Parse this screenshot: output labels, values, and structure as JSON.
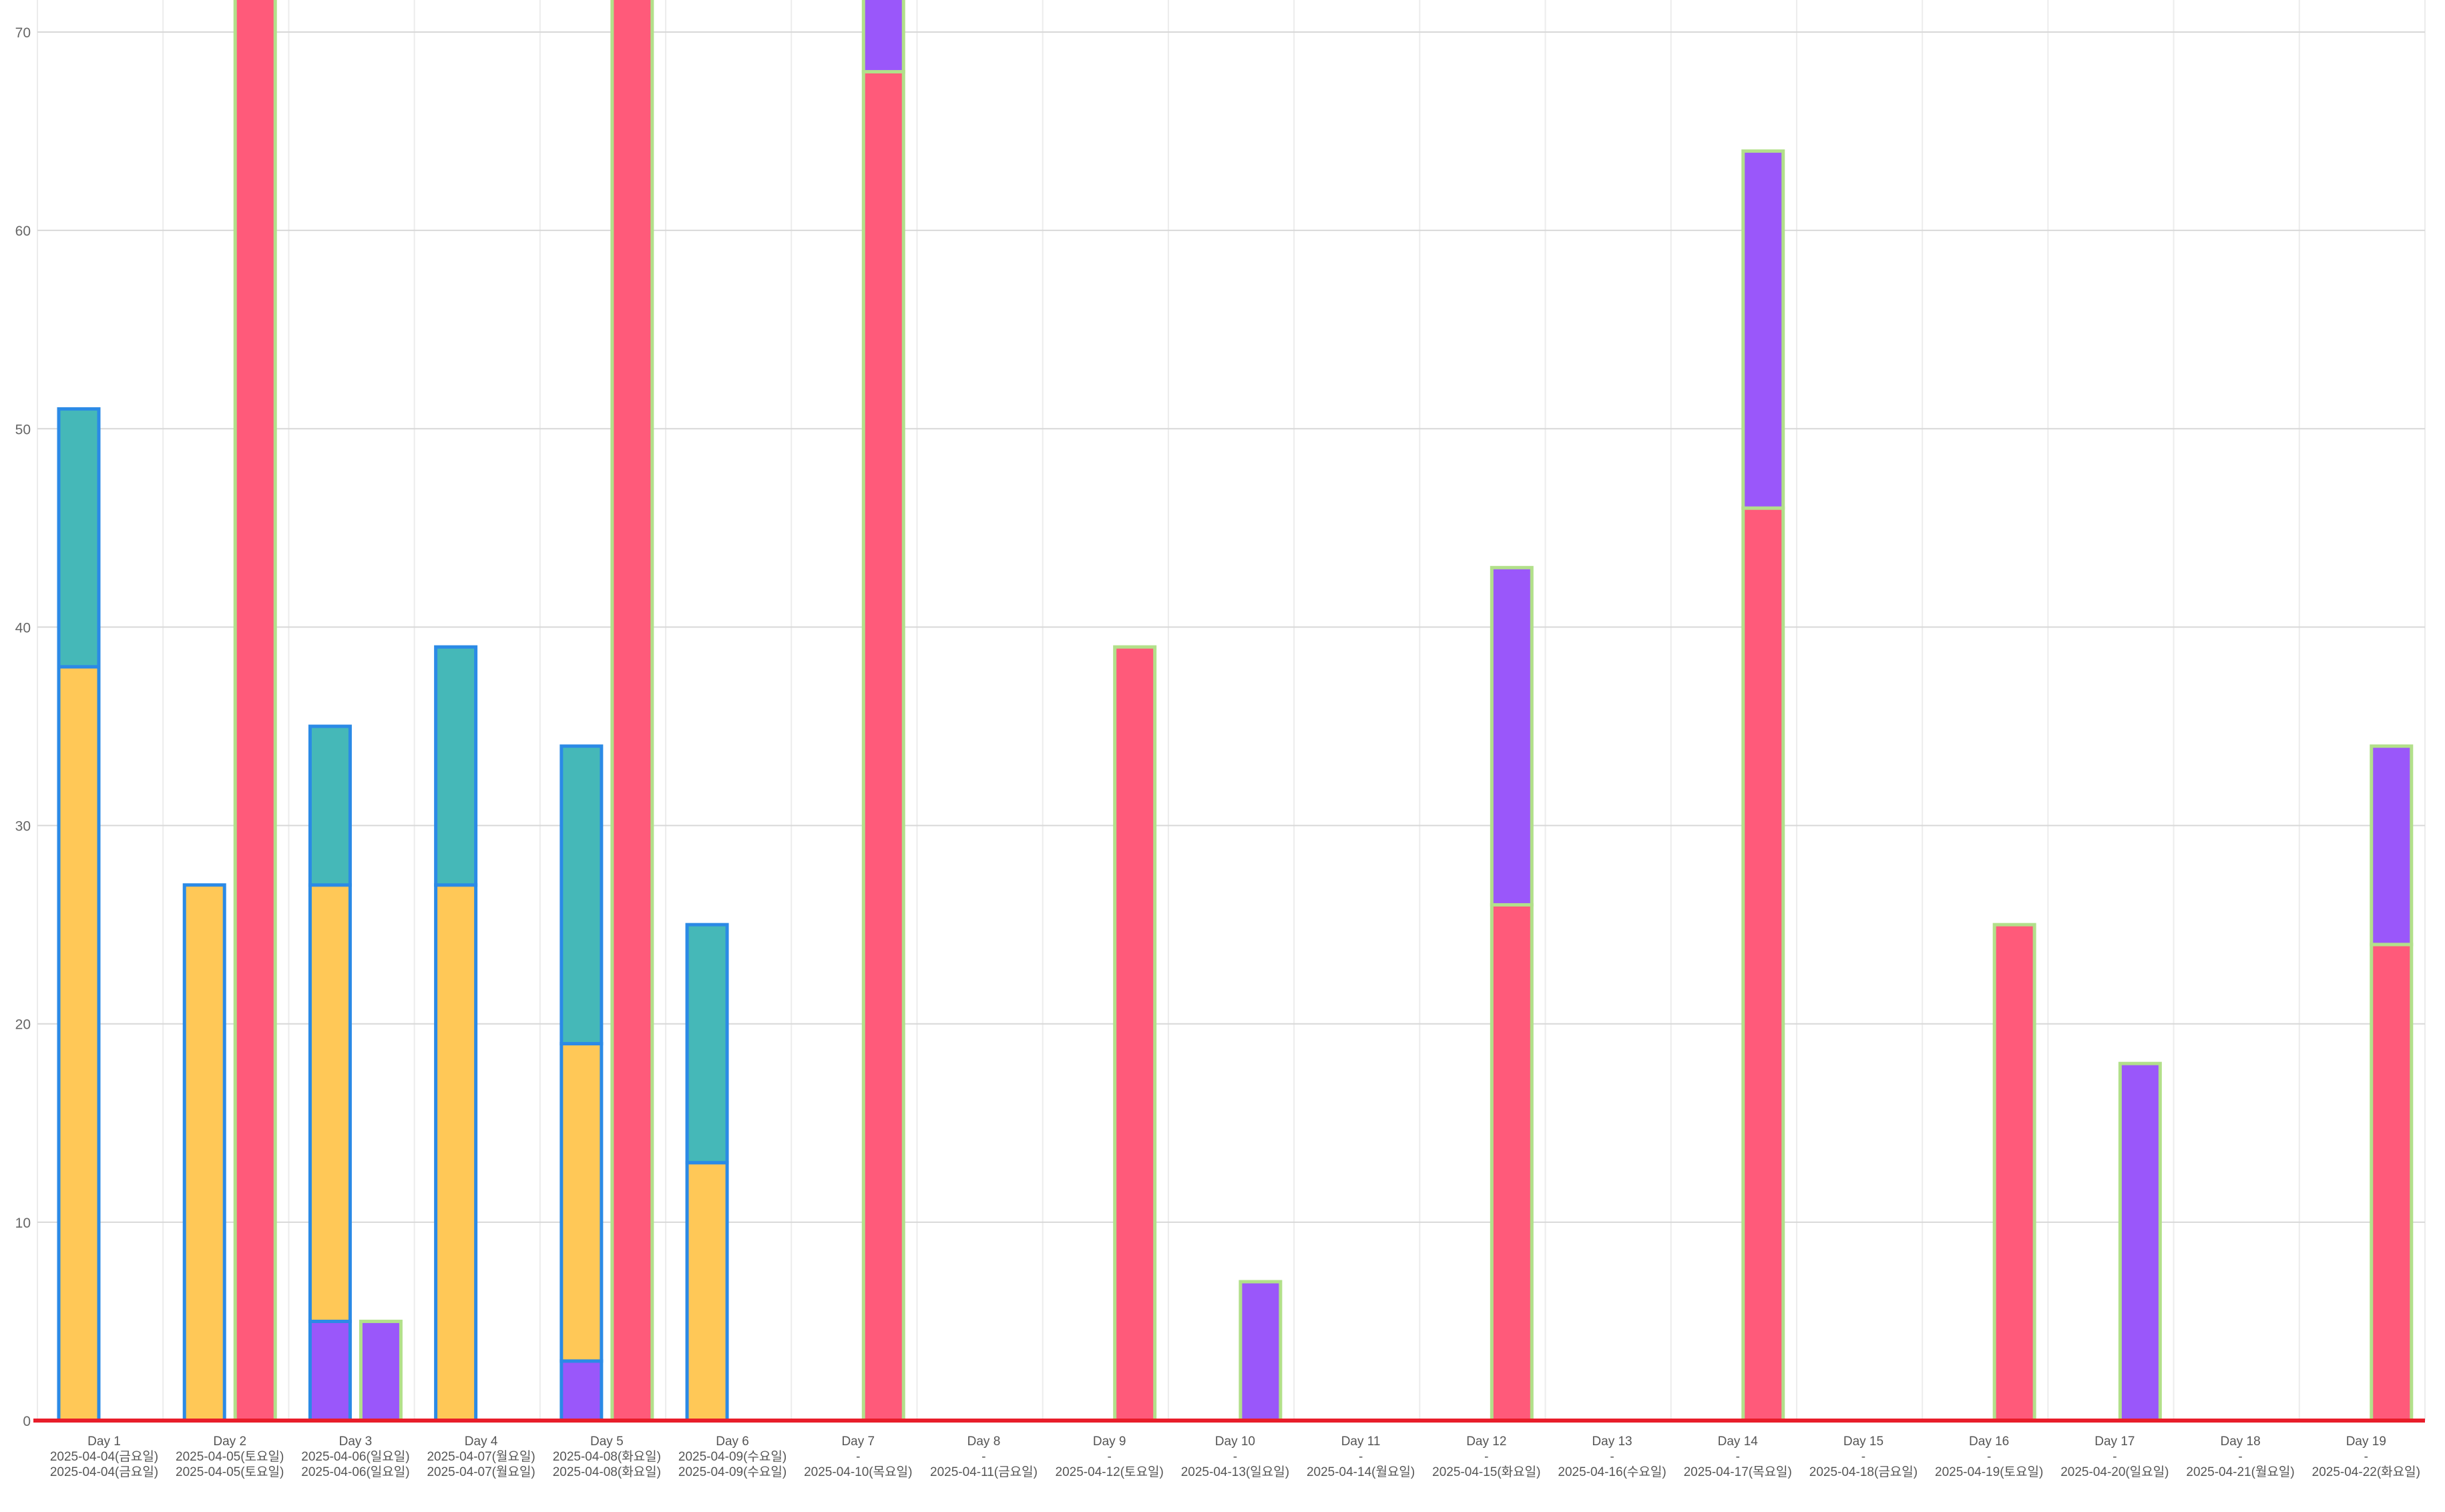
{
  "chart_data": {
    "type": "bar",
    "stacked": true,
    "grid": true,
    "legend": "none",
    "title": "",
    "xlabel": "",
    "ylabel": "",
    "ylim": [
      0,
      70
    ],
    "y_ticks": [
      0,
      10,
      20,
      30,
      40,
      50,
      60,
      70
    ],
    "colors": {
      "yellow": "#ffc857",
      "teal": "#45b8b8",
      "purple": "#9a57fa",
      "pink": "#ff5a7a",
      "blue_border": "#2b8ae6",
      "green_border": "#b2e08a",
      "baseline": "#e81d2a",
      "grid": "#d8d8d8"
    },
    "categories": [
      {
        "label": "Day 1",
        "line2": "2025-04-04(금요일)",
        "line3": "2025-04-04(금요일)"
      },
      {
        "label": "Day 2",
        "line2": "2025-04-05(토요일)",
        "line3": "2025-04-05(토요일)"
      },
      {
        "label": "Day 3",
        "line2": "2025-04-06(일요일)",
        "line3": "2025-04-06(일요일)"
      },
      {
        "label": "Day 4",
        "line2": "2025-04-07(월요일)",
        "line3": "2025-04-07(월요일)"
      },
      {
        "label": "Day 5",
        "line2": "2025-04-08(화요일)",
        "line3": "2025-04-08(화요일)"
      },
      {
        "label": "Day 6",
        "line2": "2025-04-09(수요일)",
        "line3": "2025-04-09(수요일)"
      },
      {
        "label": "Day 7",
        "line2": "-",
        "line3": "2025-04-10(목요일)"
      },
      {
        "label": "Day 8",
        "line2": "-",
        "line3": "2025-04-11(금요일)"
      },
      {
        "label": "Day 9",
        "line2": "-",
        "line3": "2025-04-12(토요일)"
      },
      {
        "label": "Day 10",
        "line2": "-",
        "line3": "2025-04-13(일요일)"
      },
      {
        "label": "Day 11",
        "line2": "-",
        "line3": "2025-04-14(월요일)"
      },
      {
        "label": "Day 12",
        "line2": "-",
        "line3": "2025-04-15(화요일)"
      },
      {
        "label": "Day 13",
        "line2": "-",
        "line3": "2025-04-16(수요일)"
      },
      {
        "label": "Day 14",
        "line2": "-",
        "line3": "2025-04-17(목요일)"
      },
      {
        "label": "Day 15",
        "line2": "-",
        "line3": "2025-04-18(금요일)"
      },
      {
        "label": "Day 16",
        "line2": "-",
        "line3": "2025-04-19(토요일)"
      },
      {
        "label": "Day 17",
        "line2": "-",
        "line3": "2025-04-20(일요일)"
      },
      {
        "label": "Day 18",
        "line2": "-",
        "line3": "2025-04-21(월요일)"
      },
      {
        "label": "Day 19",
        "line2": "-",
        "line3": "2025-04-22(화요일)"
      }
    ],
    "stacks": [
      {
        "id": "stack-blue",
        "border_color": "#2b8ae6",
        "series": [
          {
            "color": "#9a57fa",
            "values": [
              0,
              0,
              5,
              0,
              3,
              0,
              0,
              0,
              0,
              0,
              0,
              0,
              0,
              0,
              0,
              0,
              0,
              0,
              0
            ]
          },
          {
            "color": "#ffc857",
            "values": [
              38,
              27,
              22,
              27,
              16,
              13,
              0,
              0,
              0,
              0,
              0,
              0,
              0,
              0,
              0,
              0,
              0,
              0,
              0
            ]
          },
          {
            "color": "#45b8b8",
            "values": [
              13,
              0,
              8,
              12,
              15,
              12,
              0,
              0,
              0,
              0,
              0,
              0,
              0,
              0,
              0,
              0,
              0,
              0,
              0
            ]
          }
        ]
      },
      {
        "id": "stack-green",
        "border_color": "#b2e08a",
        "series": [
          {
            "color": "#ff5a7a",
            "values": [
              0,
              72,
              0,
              0,
              72,
              0,
              68,
              0,
              39,
              0,
              0,
              26,
              0,
              46,
              0,
              25,
              0,
              0,
              24
            ]
          },
          {
            "color": "#9a57fa",
            "values": [
              0,
              0,
              5,
              0,
              0,
              0,
              4,
              0,
              0,
              7,
              0,
              17,
              0,
              18,
              0,
              0,
              18,
              0,
              10
            ]
          }
        ]
      }
    ]
  }
}
